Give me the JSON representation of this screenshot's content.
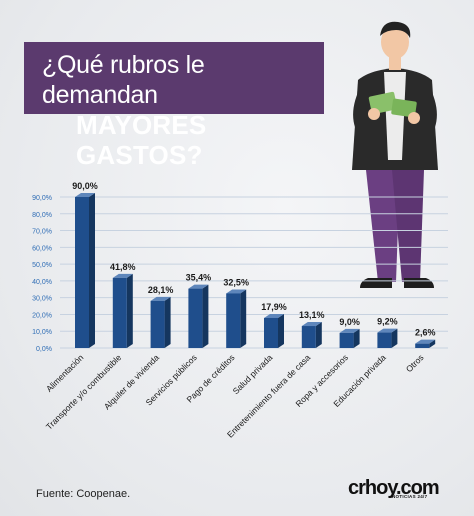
{
  "header": {
    "title_line1": "¿Qué rubros le demandan",
    "title_line2": "MAYORES GASTOS?"
  },
  "footer": {
    "source": "Fuente: Coopenae.",
    "brand": "crhoy.com",
    "brand_tagline": "NOTICIAS 24/7"
  },
  "colors": {
    "bar_front": "#1f4e8c",
    "bar_side": "#15365f",
    "bar_top": "#5e86bb",
    "title_bg": "#5b3a6e",
    "axis_tick_text": "#2f6db5"
  },
  "illustration": {
    "subject": "man-holding-money-icon"
  },
  "chart_data": {
    "type": "bar",
    "title": "¿Qué rubros le demandan MAYORES GASTOS?",
    "categories": [
      "Alimentación",
      "Transporte y/o combustible",
      "Alquiler de vivienda",
      "Servicios públicos",
      "Pago de créditos",
      "Salud privada",
      "Entretenimiento fuera de casa",
      "Ropa y accesorios",
      "Educación privada",
      "Otros"
    ],
    "values": [
      90.0,
      41.8,
      28.1,
      35.4,
      32.5,
      17.9,
      13.1,
      9.0,
      9.2,
      2.6
    ],
    "value_labels": [
      "90,0%",
      "41,8%",
      "28,1%",
      "35,4%",
      "32,5%",
      "17,9%",
      "13,1%",
      "9,0%",
      "9,2%",
      "2,6%"
    ],
    "ylim": [
      0,
      90
    ],
    "yticks": [
      0,
      10,
      20,
      30,
      40,
      50,
      60,
      70,
      80,
      90
    ],
    "ytick_labels": [
      "0,0%",
      "10,0%",
      "20,0%",
      "30,0%",
      "40,0%",
      "50,0%",
      "60,0%",
      "70,0%",
      "80,0%",
      "90,0%"
    ],
    "grid": true,
    "legend": "none"
  }
}
